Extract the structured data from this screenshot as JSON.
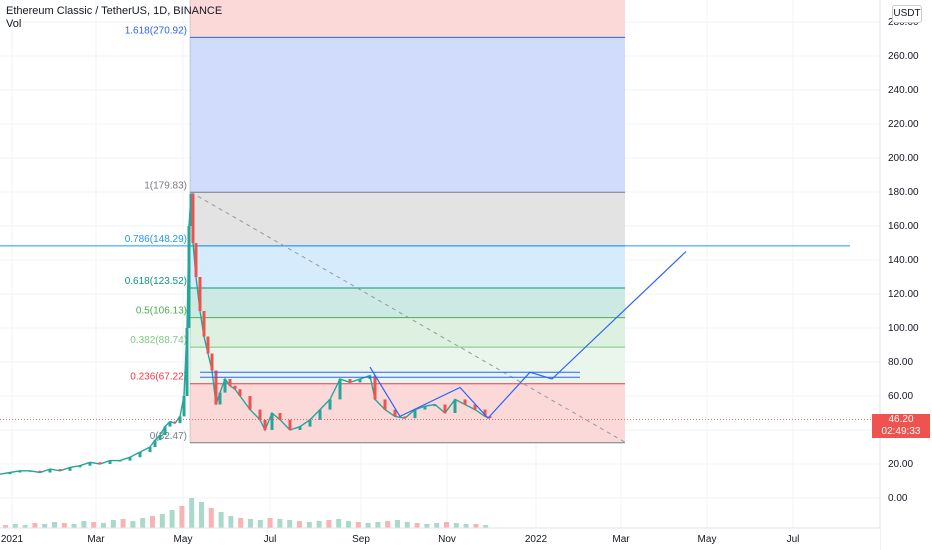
{
  "header": {
    "symbol_line": "Ethereum Classic / TetherUS, 1D, BINANCE",
    "volume_label": "Vol"
  },
  "price_axis": {
    "currency_button": "USDT",
    "ticks": [
      "280.00",
      "260.00",
      "240.00",
      "220.00",
      "200.00",
      "180.00",
      "160.00",
      "140.00",
      "120.00",
      "100.00",
      "80.00",
      "60.00",
      "40.00",
      "20.00",
      "0.00"
    ],
    "current_price": "46.20",
    "countdown": "02:49:33",
    "current_price_color": "#ef5350"
  },
  "time_axis": {
    "ticks": [
      "2021",
      "Mar",
      "May",
      "Jul",
      "Sep",
      "Nov",
      "2022",
      "Mar",
      "May",
      "Jul"
    ]
  },
  "chart_data": {
    "type": "candlestick",
    "ylim": [
      -10,
      290
    ],
    "y_ticks": [
      0,
      20,
      40,
      60,
      80,
      100,
      120,
      140,
      160,
      180,
      200,
      220,
      240,
      260,
      280
    ],
    "fib_levels": [
      {
        "label": "1.618(270.92)",
        "value": 270.92,
        "color": "#2962ff",
        "fill": "#d1dcfc"
      },
      {
        "label": "1(179.83)",
        "value": 179.83,
        "color": "#787b86",
        "fill": "#e3e3e3"
      },
      {
        "label": "0.786(148.29)",
        "value": 148.29,
        "color": "#2196f3",
        "fill": "#d6ecfd"
      },
      {
        "label": "0.618(123.52)",
        "value": 123.52,
        "color": "#089981",
        "fill": "#cde9e3"
      },
      {
        "label": "0.5(106.13)",
        "value": 106.13,
        "color": "#4caf50",
        "fill": "#def0df"
      },
      {
        "label": "0.382(88.74)",
        "value": 88.74,
        "color": "#81c784",
        "fill": "#eaf6eb"
      },
      {
        "label": "0.236(67.22)",
        "value": 67.22,
        "color": "#f23645",
        "fill": "#fcd9d9"
      },
      {
        "label": "0(32.47)",
        "value": 32.47,
        "color": "#787b86",
        "fill": "#fcd9d9"
      }
    ],
    "top_zone_fill": "#fcd9d9",
    "horizontal_line": {
      "value": 148.29,
      "color": "#2196f3"
    },
    "price_path": [
      [
        0,
        14
      ],
      [
        10,
        15
      ],
      [
        20,
        16
      ],
      [
        30,
        16
      ],
      [
        40,
        15
      ],
      [
        50,
        17
      ],
      [
        60,
        16
      ],
      [
        70,
        18
      ],
      [
        80,
        19
      ],
      [
        90,
        21
      ],
      [
        100,
        20
      ],
      [
        110,
        22
      ],
      [
        120,
        22
      ],
      [
        130,
        24
      ],
      [
        140,
        27
      ],
      [
        150,
        30
      ],
      [
        155,
        34
      ],
      [
        160,
        37
      ],
      [
        165,
        42
      ],
      [
        170,
        45
      ],
      [
        175,
        44
      ],
      [
        180,
        48
      ],
      [
        184,
        60
      ],
      [
        187,
        100
      ],
      [
        189,
        160
      ],
      [
        191,
        179
      ],
      [
        193,
        150
      ],
      [
        196,
        130
      ],
      [
        200,
        110
      ],
      [
        204,
        95
      ],
      [
        208,
        85
      ],
      [
        212,
        75
      ],
      [
        216,
        55
      ],
      [
        220,
        62
      ],
      [
        225,
        70
      ],
      [
        230,
        66
      ],
      [
        235,
        64
      ],
      [
        240,
        60
      ],
      [
        250,
        52
      ],
      [
        260,
        46
      ],
      [
        265,
        40
      ],
      [
        272,
        50
      ],
      [
        280,
        46
      ],
      [
        290,
        40
      ],
      [
        300,
        42
      ],
      [
        310,
        46
      ],
      [
        320,
        52
      ],
      [
        330,
        58
      ],
      [
        340,
        70
      ],
      [
        350,
        68
      ],
      [
        360,
        70
      ],
      [
        370,
        72
      ],
      [
        375,
        58
      ],
      [
        385,
        52
      ],
      [
        395,
        48
      ],
      [
        405,
        47
      ],
      [
        415,
        52
      ],
      [
        425,
        54
      ],
      [
        435,
        55
      ],
      [
        445,
        50
      ],
      [
        455,
        58
      ],
      [
        465,
        55
      ],
      [
        475,
        52
      ],
      [
        485,
        48
      ],
      [
        490,
        47
      ]
    ],
    "projection_path": [
      [
        370,
        77
      ],
      [
        400,
        48
      ],
      [
        460,
        65
      ],
      [
        488,
        47
      ],
      [
        530,
        74
      ],
      [
        552,
        70
      ],
      [
        686,
        145
      ]
    ],
    "dashed_line": [
      [
        191,
        179.83
      ],
      [
        626,
        32.47
      ]
    ],
    "pattern_lines": [
      {
        "x": [
          200,
          580
        ],
        "value": 74
      },
      {
        "x": [
          200,
          580
        ],
        "value": 71
      }
    ],
    "volume": [
      3,
      4,
      3,
      5,
      4,
      6,
      5,
      4,
      7,
      6,
      5,
      8,
      9,
      7,
      10,
      12,
      14,
      18,
      22,
      30,
      26,
      20,
      16,
      12,
      10,
      9,
      8,
      10,
      9,
      8,
      7,
      6,
      7,
      8,
      9,
      7,
      6,
      5,
      6,
      7,
      8,
      6,
      5,
      4,
      5,
      6,
      5,
      4,
      4,
      3
    ],
    "current_value": 46.2
  }
}
